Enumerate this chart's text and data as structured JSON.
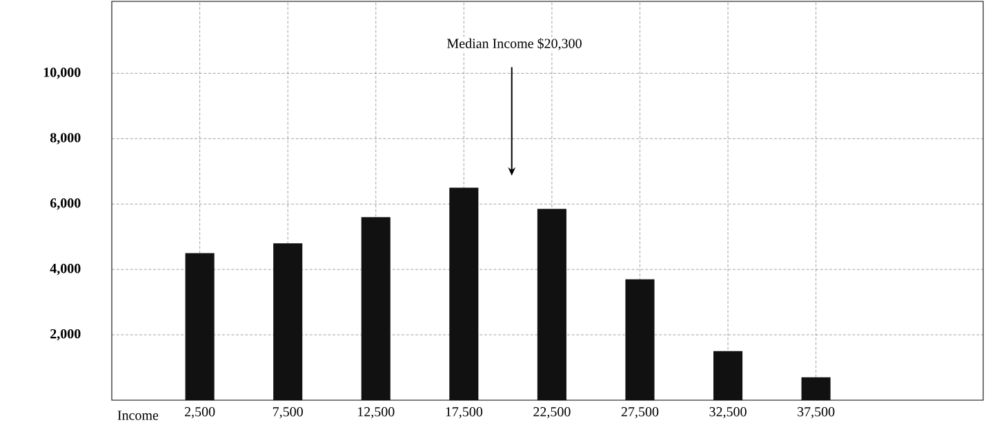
{
  "chart_data": {
    "type": "bar",
    "xlabel": "Income",
    "x": [
      2500,
      7500,
      12500,
      17500,
      22500,
      27500,
      32500,
      37500
    ],
    "values": [
      4500,
      4800,
      5600,
      6500,
      5850,
      3700,
      1500,
      700
    ],
    "color": "#111111",
    "xlim": [
      -2500,
      47000
    ],
    "xticks": [
      {
        "value": 2500,
        "label": "2,500"
      },
      {
        "value": 7500,
        "label": "7,500"
      },
      {
        "value": 12500,
        "label": "12,500"
      },
      {
        "value": 17500,
        "label": "17,500"
      },
      {
        "value": 22500,
        "label": "22,500"
      },
      {
        "value": 27500,
        "label": "27,500"
      },
      {
        "value": 32500,
        "label": "32,500"
      },
      {
        "value": 37500,
        "label": "37,500"
      }
    ],
    "ylim": [
      0,
      12200
    ],
    "yticks": [
      {
        "value": 2000,
        "label": "2,000"
      },
      {
        "value": 4000,
        "label": "4,000"
      },
      {
        "value": 6000,
        "label": "6,000"
      },
      {
        "value": 8000,
        "label": "8,000"
      },
      {
        "value": 10000,
        "label": "10,000"
      }
    ],
    "grid": true,
    "annotations": [
      "Median Income $20,300"
    ]
  }
}
